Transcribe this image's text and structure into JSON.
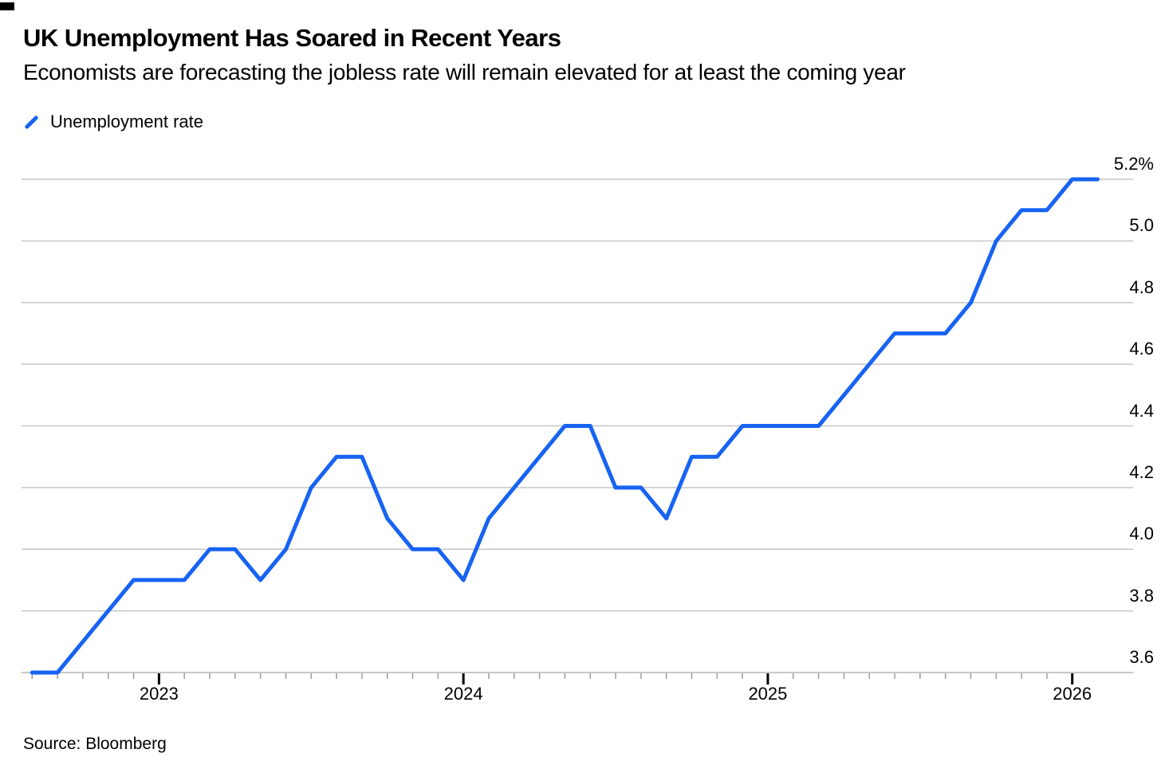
{
  "header": {
    "title": "UK Unemployment Has Soared in Recent Years",
    "subtitle": "Economists are forecasting the jobless rate will remain elevated for at least the coming year"
  },
  "legend": {
    "items": [
      {
        "label": "Unemployment rate",
        "color": "#1763f2"
      }
    ]
  },
  "footer": {
    "source": "Source: Bloomberg"
  },
  "chart_data": {
    "type": "line",
    "title": "UK Unemployment Has Soared in Recent Years",
    "subtitle": "Economists are forecasting the jobless rate will remain elevated for at least the coming year",
    "xlabel": "",
    "ylabel": "Unemployment rate (%)",
    "ylim": [
      3.6,
      5.2
    ],
    "grid": "horizontal",
    "legend_position": "top-left",
    "frequency": "monthly",
    "x_start": "2022-08",
    "x_end": "2026-02",
    "y_tick_labels": [
      "5.2%",
      "5.0",
      "4.8",
      "4.6",
      "4.4",
      "4.2",
      "4.0",
      "3.8",
      "3.6"
    ],
    "y_tick_values": [
      5.2,
      5.0,
      4.8,
      4.6,
      4.4,
      4.2,
      4.0,
      3.8,
      3.6
    ],
    "x_tick_labels": [
      "2023",
      "2024",
      "2025",
      "2026"
    ],
    "series": [
      {
        "name": "Unemployment rate",
        "values": [
          3.6,
          3.6,
          3.7,
          3.8,
          3.9,
          3.9,
          3.9,
          4.0,
          4.0,
          3.9,
          4.0,
          4.2,
          4.3,
          4.3,
          4.1,
          4.0,
          4.0,
          3.9,
          4.1,
          4.2,
          4.3,
          4.4,
          4.4,
          4.2,
          4.2,
          4.1,
          4.3,
          4.3,
          4.4,
          4.4,
          4.4,
          4.4,
          4.5,
          4.6,
          4.7,
          4.7,
          4.7,
          4.8,
          5.0,
          5.1,
          5.1,
          5.2,
          5.2
        ]
      }
    ],
    "colors": {
      "line": "#1763f2",
      "grid": "#c6c6c6",
      "axis": "#b5b5b5",
      "minor_tick": "#9b9b9b",
      "year_tick": "#000000",
      "text": "#000000"
    }
  }
}
